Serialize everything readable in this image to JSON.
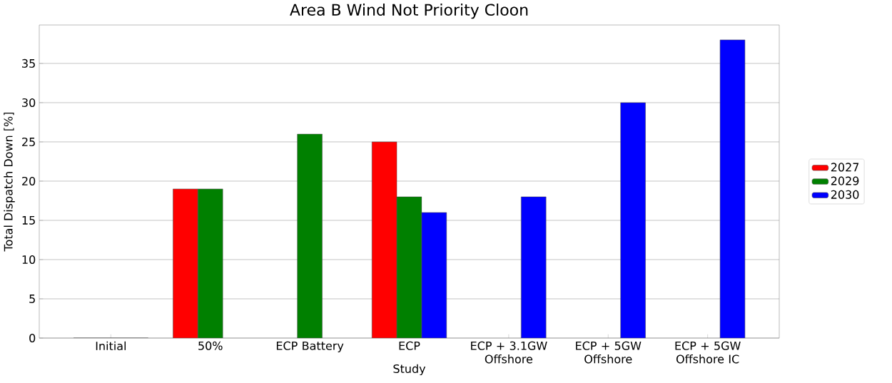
{
  "chart_data": {
    "type": "bar",
    "title": "Area B Wind Not Priority Cloon",
    "xlabel": "Study",
    "ylabel": "Total Dispatch Down [%]",
    "categories": [
      "Initial",
      "50%",
      "ECP Battery",
      "ECP",
      "ECP + 3.1GW Offshore",
      "ECP + 5GW Offshore",
      "ECP + 5GW Offshore IC"
    ],
    "series": [
      {
        "name": "2027",
        "color": "#ff0000",
        "values": [
          0,
          19,
          null,
          25,
          null,
          null,
          null
        ]
      },
      {
        "name": "2029",
        "color": "#008000",
        "values": [
          0,
          19,
          26,
          18,
          null,
          null,
          null
        ]
      },
      {
        "name": "2030",
        "color": "#0000ff",
        "values": [
          0,
          null,
          null,
          16,
          18,
          30,
          38
        ]
      }
    ],
    "ylim": [
      0,
      39.9
    ],
    "yticks": [
      0,
      5,
      10,
      15,
      20,
      25,
      30,
      35
    ],
    "grid": "y",
    "legend": "right"
  }
}
